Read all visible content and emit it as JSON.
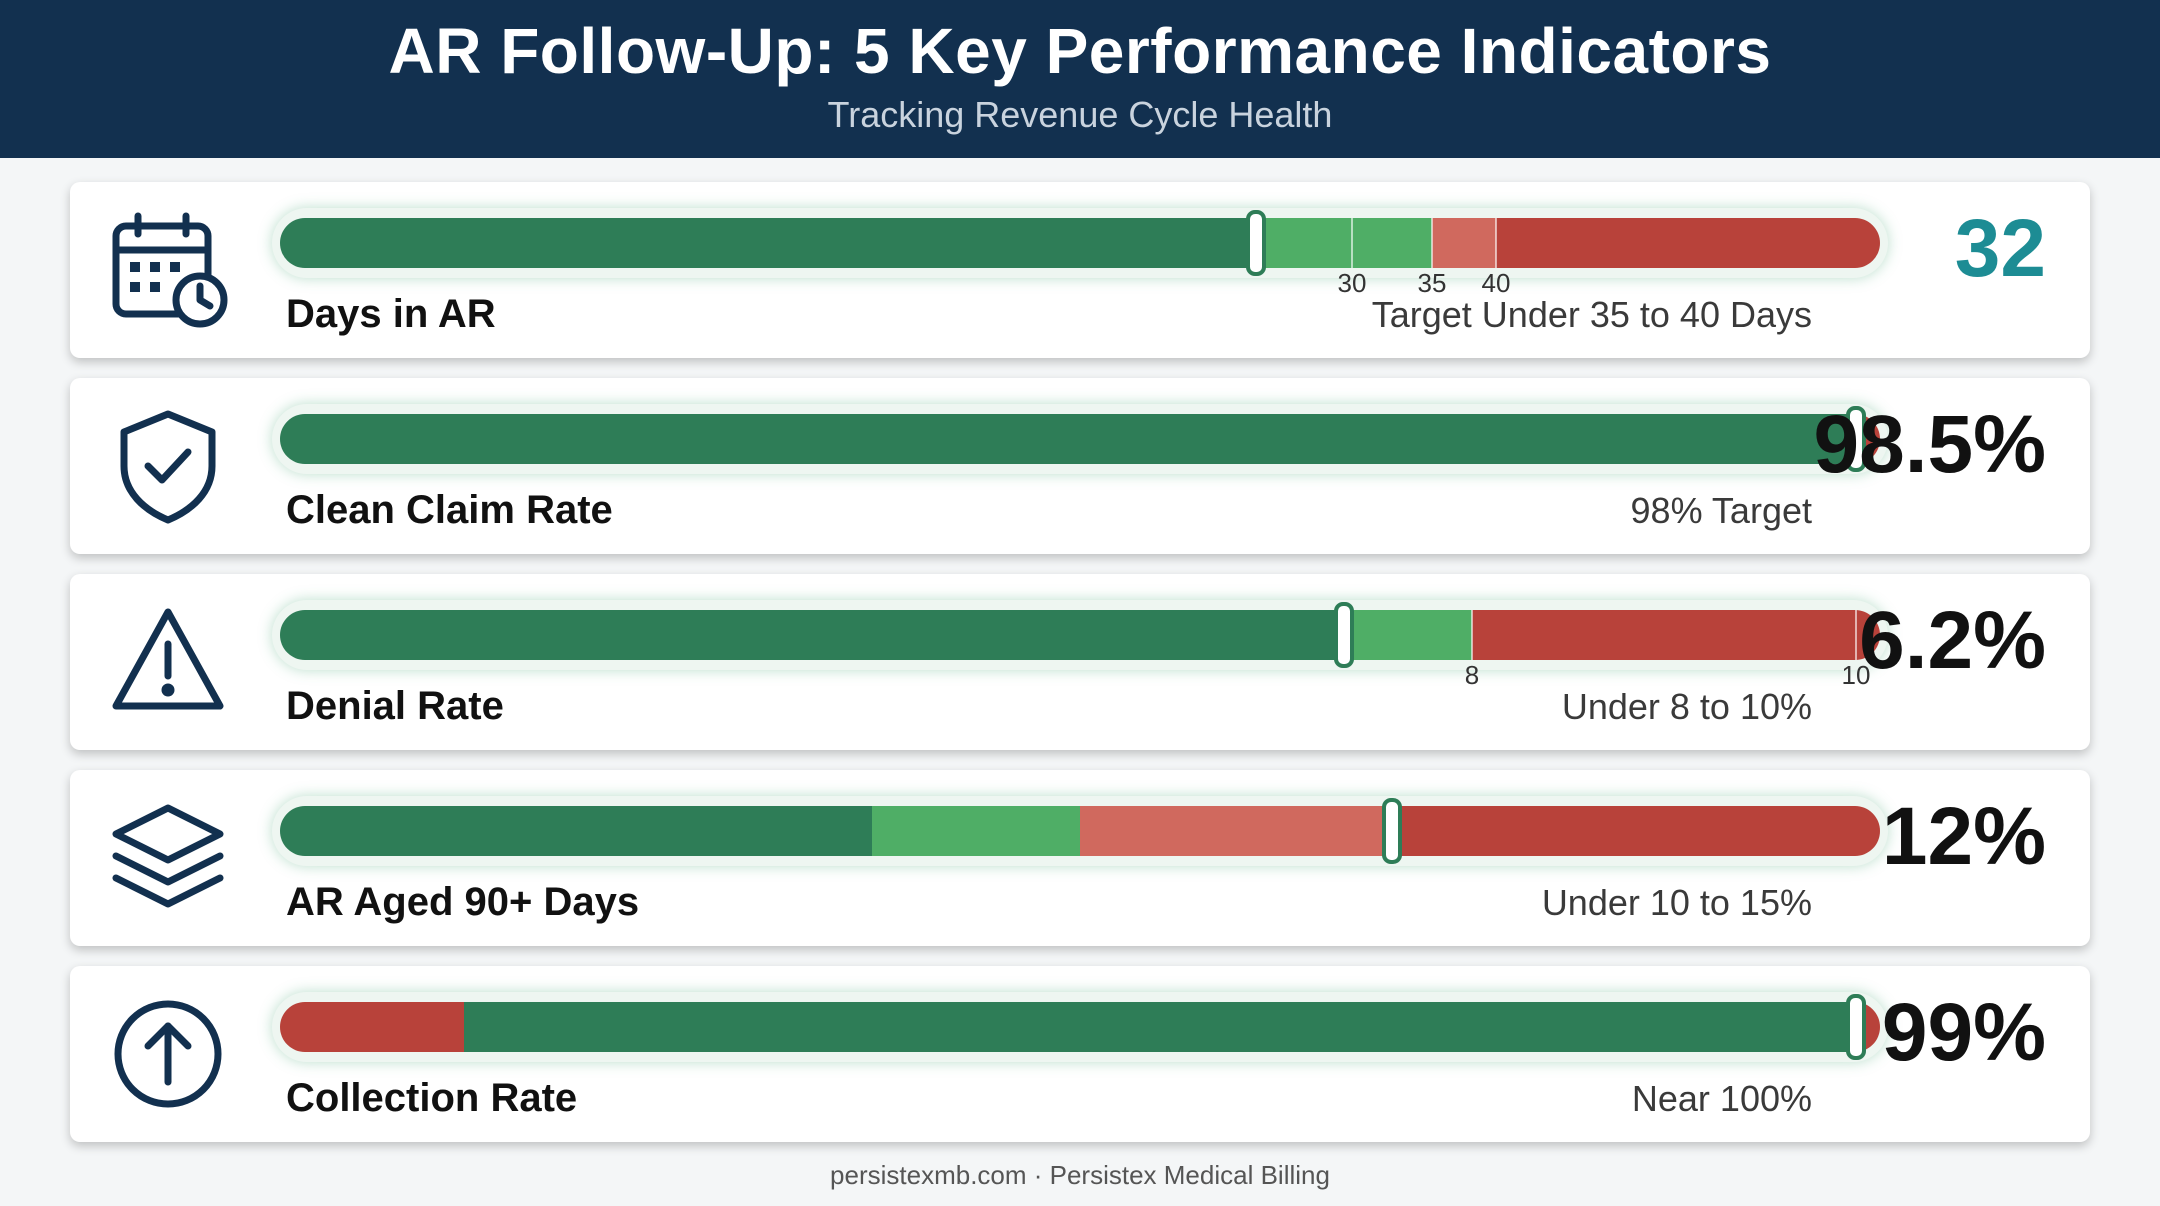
{
  "header": {
    "title": "AR Follow-Up: 5 Key Performance Indicators",
    "subtitle": "Tracking Revenue Cycle Health"
  },
  "colors": {
    "header_bg": "#12304f",
    "green_dark": "#2e7d57",
    "green_light": "#4fae66",
    "red_light": "#d0695e",
    "red": "#b8423a",
    "value_teal": "#1d8c94"
  },
  "chart_data": [
    {
      "type": "bar",
      "icon": "calendar-clock-icon",
      "label": "Days in AR",
      "value": 32,
      "value_text": "32",
      "target_text": "Target Under 35 to 40 Days",
      "marker_fraction": 0.61,
      "segments": [
        {
          "to": 0.61,
          "color": "green_dark"
        },
        {
          "to": 0.72,
          "color": "green_light"
        },
        {
          "to": 0.76,
          "color": "red_light"
        },
        {
          "to": 1.0,
          "color": "red"
        }
      ],
      "ticks": [
        {
          "label": "30",
          "at": 0.67
        },
        {
          "label": "35",
          "at": 0.72
        },
        {
          "label": "40",
          "at": 0.76
        }
      ]
    },
    {
      "type": "bar",
      "icon": "shield-check-icon",
      "label": "Clean Claim Rate",
      "value": 98.5,
      "value_text": "98.5%",
      "target_text": "98% Target",
      "marker_fraction": 0.985,
      "segments": [
        {
          "to": 0.985,
          "color": "green_dark"
        },
        {
          "to": 1.0,
          "color": "red"
        }
      ],
      "ticks": []
    },
    {
      "type": "bar",
      "icon": "warning-icon",
      "label": "Denial Rate",
      "value": 6.2,
      "value_text": "6.2%",
      "target_text": "Under 8 to 10%",
      "marker_fraction": 0.665,
      "segments": [
        {
          "to": 0.665,
          "color": "green_dark"
        },
        {
          "to": 0.745,
          "color": "green_light"
        },
        {
          "to": 1.0,
          "color": "red"
        }
      ],
      "ticks": [
        {
          "label": "8",
          "at": 0.745
        },
        {
          "label": "10",
          "at": 0.985
        }
      ]
    },
    {
      "type": "bar",
      "icon": "layers-icon",
      "label": "AR Aged 90+ Days",
      "value": 12,
      "value_text": "12%",
      "target_text": "Under 10 to 15%",
      "marker_fraction": 0.695,
      "segments": [
        {
          "to": 0.37,
          "color": "green_dark"
        },
        {
          "to": 0.5,
          "color": "green_light"
        },
        {
          "to": 0.695,
          "color": "red_light"
        },
        {
          "to": 1.0,
          "color": "red"
        }
      ],
      "ticks": []
    },
    {
      "type": "bar",
      "icon": "arrow-up-circle-icon",
      "label": "Collection Rate",
      "value": 99,
      "value_text": "99%",
      "target_text": "Near 100%",
      "marker_fraction": 0.985,
      "segments": [
        {
          "to": 0.115,
          "color": "red"
        },
        {
          "to": 0.985,
          "color": "green_dark"
        },
        {
          "to": 1.0,
          "color": "red"
        }
      ],
      "ticks": []
    }
  ],
  "footer": {
    "text": "persistexmb.com · Persistex Medical Billing"
  }
}
